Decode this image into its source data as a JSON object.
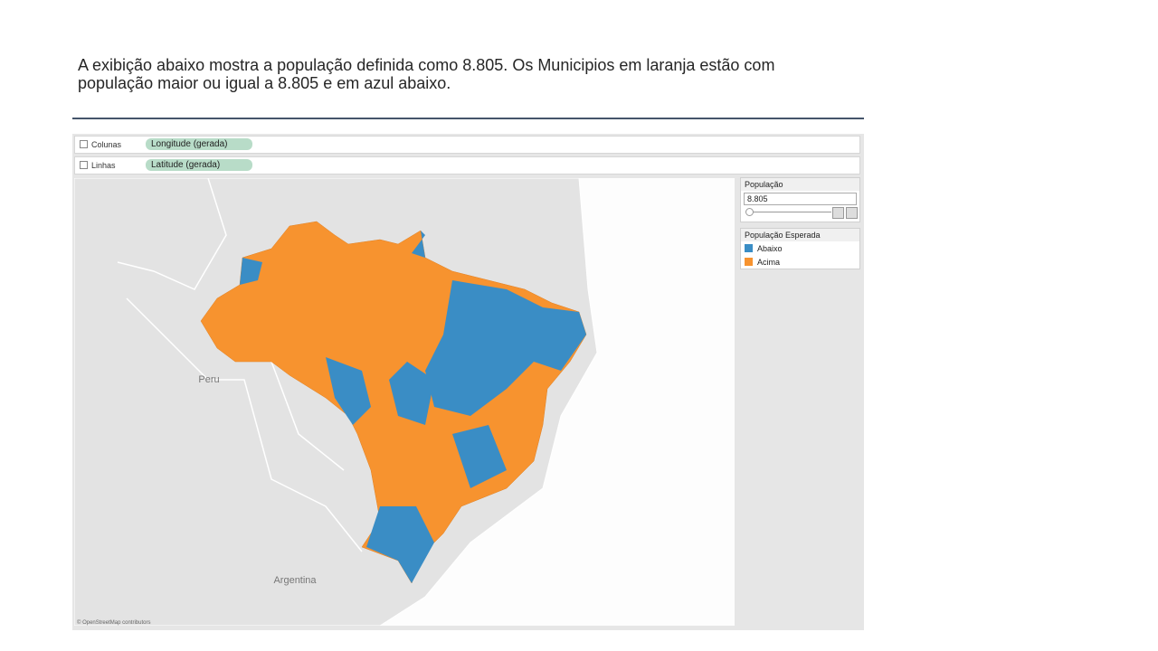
{
  "slide": {
    "text": "A exibição abaixo mostra a população definida como 8.805. Os Municipios em laranja estão com população maior ou igual a 8.805 e em azul abaixo."
  },
  "shelves": [
    {
      "name": "Colunas",
      "pill": "Longitude (gerada)"
    },
    {
      "name": "Linhas",
      "pill": "Latitude (gerada)"
    }
  ],
  "map": {
    "labels": [
      "Peru",
      "Argentina"
    ],
    "attribution": "© OpenStreetMap contributors"
  },
  "parameter": {
    "title": "População",
    "value": "8.805"
  },
  "legend": {
    "title": "População Esperada",
    "items": [
      {
        "label": "Abaixo",
        "color": "#3a8dc5"
      },
      {
        "label": "Acima",
        "color": "#f7932f"
      }
    ]
  }
}
